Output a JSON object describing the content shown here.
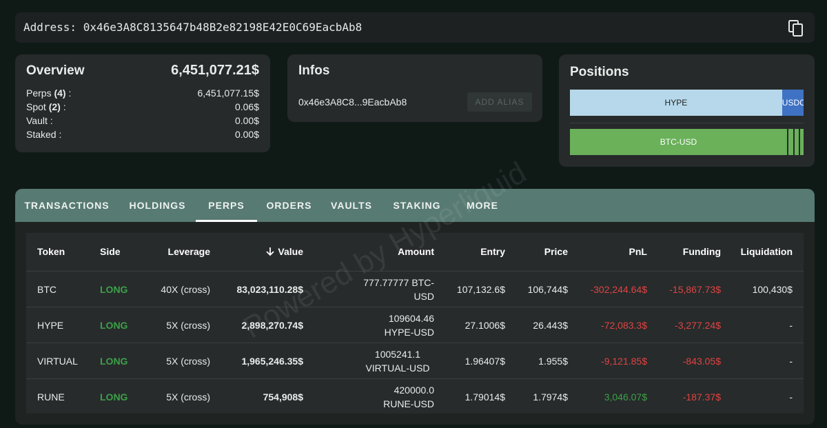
{
  "address": {
    "label": "Address:",
    "value": "0x46e3A8C8135647b48B2e82198E42E0C69EacbAb8",
    "copy_icon": "copy-icon"
  },
  "overview": {
    "title": "Overview",
    "total": "6,451,077.21$",
    "rows": [
      {
        "label": "Perps",
        "count": "(4)",
        "suffix": " :",
        "value": "6,451,077.15$"
      },
      {
        "label": "Spot",
        "count": "(2)",
        "suffix": " :",
        "value": "0.06$"
      },
      {
        "label": "Vault",
        "count": "",
        "suffix": " :",
        "value": "0.00$"
      },
      {
        "label": "Staked",
        "count": "",
        "suffix": " :",
        "value": "0.00$"
      }
    ]
  },
  "infos": {
    "title": "Infos",
    "short_address": "0x46e3A8C8...9EacbAb8",
    "add_alias_label": "ADD ALIAS"
  },
  "positions": {
    "title": "Positions",
    "bars": [
      {
        "segments": [
          {
            "label": "HYPE",
            "share": 0.908,
            "color": "#b7d8ea",
            "text_color": "#222222"
          },
          {
            "label": "USDC",
            "share": 0.092,
            "color": "#3f72c4",
            "text_color": "#ffffff"
          }
        ]
      },
      {
        "segments": [
          {
            "label": "BTC-USD",
            "share": 0.935,
            "color": "#6ab15a",
            "text_color": "#ffffff"
          },
          {
            "label": "",
            "share": 0.028,
            "color": "#6ab15a",
            "text_color": "#ffffff"
          },
          {
            "label": "",
            "share": 0.022,
            "color": "#6ab15a",
            "text_color": "#ffffff"
          },
          {
            "label": "",
            "share": 0.015,
            "color": "#6ab15a",
            "text_color": "#ffffff"
          }
        ]
      }
    ]
  },
  "tabs": {
    "items": [
      "TRANSACTIONS",
      "HOLDINGS",
      "PERPS",
      "ORDERS",
      "VAULTS",
      "STAKING",
      "MORE"
    ],
    "active": "PERPS"
  },
  "table": {
    "sort_icon": "arrow-down-icon",
    "headers": {
      "token": "Token",
      "side": "Side",
      "leverage": "Leverage",
      "value": "Value",
      "amount": "Amount",
      "entry": "Entry",
      "price": "Price",
      "pnl": "PnL",
      "funding": "Funding",
      "liquidation": "Liquidation"
    },
    "rows": [
      {
        "token": "BTC",
        "side": "LONG",
        "leverage": "40X (cross)",
        "value": "83,023,110.28$",
        "amount": "777.77777 BTC-USD",
        "entry": "107,132.6$",
        "price": "106,744$",
        "pnl": "-302,244.64$",
        "pnl_sign": "neg",
        "funding": "-15,867.73$",
        "liquidation": "100,430$"
      },
      {
        "token": "HYPE",
        "side": "LONG",
        "leverage": "5X (cross)",
        "value": "2,898,270.74$",
        "amount": "109604.46 HYPE-USD",
        "entry": "27.1006$",
        "price": "26.443$",
        "pnl": "-72,083.3$",
        "pnl_sign": "neg",
        "funding": "-3,277.24$",
        "liquidation": "-"
      },
      {
        "token": "VIRTUAL",
        "side": "LONG",
        "leverage": "5X (cross)",
        "value": "1,965,246.35$",
        "amount": "1005241.1 VIRTUAL-USD",
        "entry": "1.96407$",
        "price": "1.955$",
        "pnl": "-9,121.85$",
        "pnl_sign": "neg",
        "funding": "-843.05$",
        "liquidation": "-"
      },
      {
        "token": "RUNE",
        "side": "LONG",
        "leverage": "5X (cross)",
        "value": "754,908$",
        "amount": "420000.0 RUNE-USD",
        "entry": "1.79014$",
        "price": "1.7974$",
        "pnl": "3,046.07$",
        "pnl_sign": "pos",
        "funding": "-187.37$",
        "liquidation": "-"
      }
    ]
  },
  "watermark": "Powered by Hyperliquid"
}
